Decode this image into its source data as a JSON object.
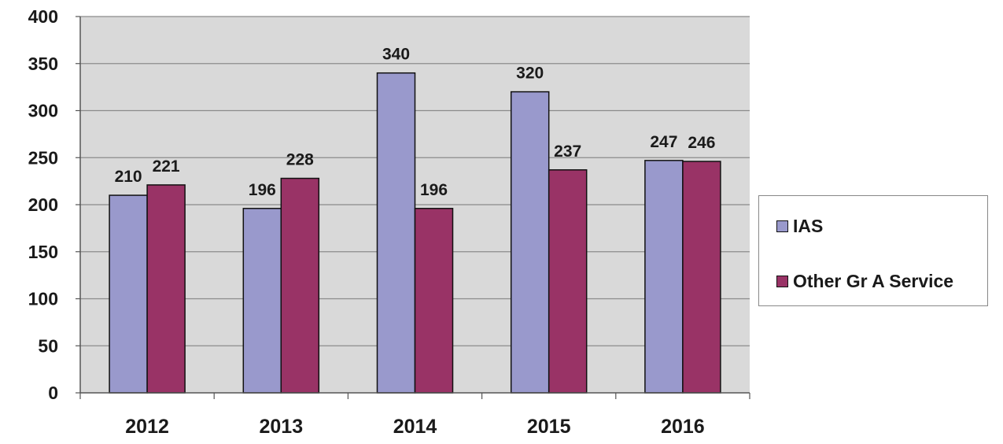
{
  "chart_data": {
    "type": "bar",
    "categories": [
      "2012",
      "2013",
      "2014",
      "2015",
      "2016"
    ],
    "series": [
      {
        "name": "IAS",
        "values": [
          210,
          196,
          340,
          320,
          247
        ],
        "color": "#9999cc"
      },
      {
        "name": "Other Gr A Service",
        "values": [
          221,
          228,
          196,
          237,
          246
        ],
        "color": "#993366"
      }
    ],
    "ylim": [
      0,
      400
    ],
    "yticks": [
      0,
      50,
      100,
      150,
      200,
      250,
      300,
      350,
      400
    ],
    "grid": true,
    "plot_background": "#d9d9d9",
    "legend_position": "right",
    "data_labels": true
  }
}
